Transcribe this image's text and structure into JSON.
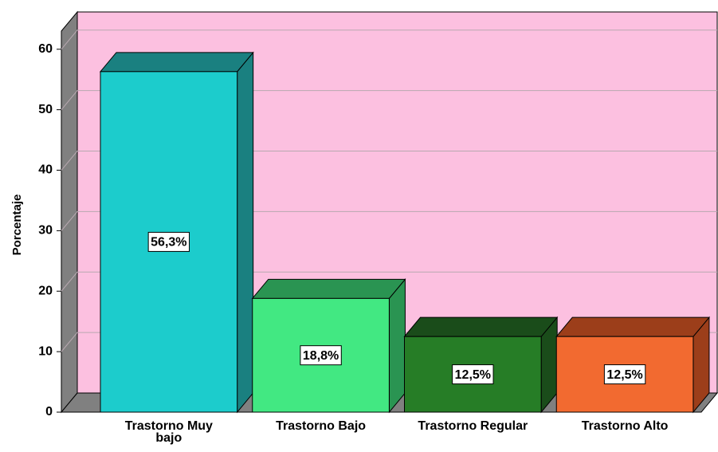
{
  "chart_data": {
    "type": "bar3d",
    "y_axis_label": "Porcentaje",
    "categories": [
      "Trastorno Muy bajo",
      "Trastorno Bajo",
      "Trastorno Regular",
      "Trastorno Alto"
    ],
    "values": [
      56.3,
      18.8,
      12.5,
      12.5
    ],
    "value_labels": [
      "56,3%",
      "18,8%",
      "12,5%",
      "12,5%"
    ],
    "colors": [
      "#1ccccc",
      "#42e882",
      "#267d26",
      "#f26a30"
    ],
    "side_colors": [
      "#1a8080",
      "#2a9452",
      "#1a4c1a",
      "#9c3e1a"
    ],
    "wall_color": "#fcc0e0",
    "ylim": [
      0,
      63
    ],
    "yticks": [
      0,
      10,
      20,
      30,
      40,
      50,
      60
    ],
    "grid": true
  }
}
